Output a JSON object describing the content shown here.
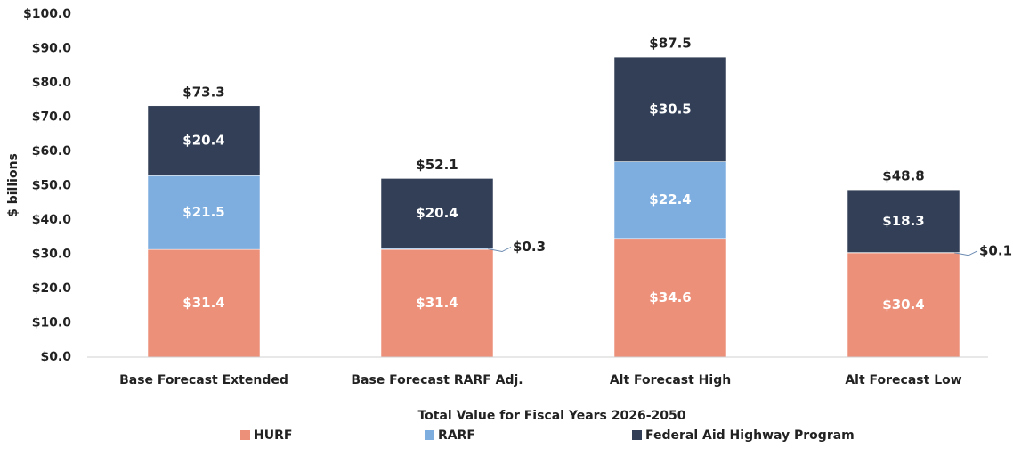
{
  "chart_data": {
    "type": "stacked_bar",
    "categories": [
      "Base Forecast Extended",
      "Base Forecast RARF Adj.",
      "Alt Forecast High",
      "Alt Forecast Low"
    ],
    "series": [
      {
        "name": "HURF",
        "color": "#ed907a",
        "values": [
          31.4,
          31.4,
          34.6,
          30.4
        ],
        "value_labels": [
          "$31.4",
          "$31.4",
          "$34.6",
          "$30.4"
        ]
      },
      {
        "name": "RARF",
        "color": "#7eaee0",
        "values": [
          21.5,
          0.3,
          22.4,
          0.1
        ],
        "value_labels": [
          "$21.5",
          "$0.3",
          "$22.4",
          "$0.1"
        ]
      },
      {
        "name": "Federal Aid Highway Program",
        "color": "#323f56",
        "values": [
          20.4,
          20.4,
          30.5,
          18.3
        ],
        "value_labels": [
          "$20.4",
          "$20.4",
          "$30.5",
          "$18.3"
        ]
      }
    ],
    "totals": [
      73.3,
      52.1,
      87.5,
      48.8
    ],
    "total_labels": [
      "$73.3",
      "$52.1",
      "$87.5",
      "$48.8"
    ],
    "y_label": "$ billions",
    "x_label": "Total Value for Fiscal Years 2026-2050",
    "ylim": [
      0,
      100
    ],
    "yticks": [
      {
        "value": 0,
        "label": "$0.0"
      },
      {
        "value": 10,
        "label": "$10.0"
      },
      {
        "value": 20,
        "label": "$20.0"
      },
      {
        "value": 30,
        "label": "$30.0"
      },
      {
        "value": 40,
        "label": "$40.0"
      },
      {
        "value": 50,
        "label": "$50.0"
      },
      {
        "value": 60,
        "label": "$60.0"
      },
      {
        "value": 70,
        "label": "$70.0"
      },
      {
        "value": 80,
        "label": "$80.0"
      },
      {
        "value": 90,
        "label": "$90.0"
      },
      {
        "value": 100,
        "label": "$100.0"
      }
    ],
    "grid": false,
    "legend": "bottom"
  }
}
